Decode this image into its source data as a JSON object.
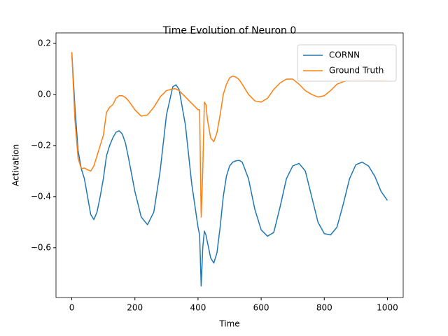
{
  "chart_data": {
    "type": "line",
    "title": "Time Evolution of Neuron 0",
    "x_label": "Time",
    "y_label": "Activation",
    "x": [
      0,
      10,
      20,
      30,
      40,
      50,
      60,
      70,
      80,
      90,
      100,
      110,
      120,
      130,
      140,
      150,
      160,
      170,
      180,
      200,
      220,
      240,
      260,
      280,
      300,
      320,
      330,
      340,
      360,
      380,
      400,
      405,
      410,
      415,
      420,
      425,
      430,
      440,
      450,
      460,
      470,
      480,
      490,
      500,
      510,
      520,
      530,
      540,
      560,
      580,
      600,
      620,
      640,
      660,
      680,
      700,
      720,
      740,
      760,
      780,
      800,
      820,
      840,
      860,
      880,
      900,
      920,
      940,
      960,
      980,
      1000
    ],
    "series": [
      {
        "name": "CORNN",
        "color": "#1f77b4",
        "values": [
          0.165,
          -0.05,
          -0.22,
          -0.29,
          -0.33,
          -0.4,
          -0.47,
          -0.49,
          -0.46,
          -0.4,
          -0.33,
          -0.24,
          -0.2,
          -0.17,
          -0.148,
          -0.142,
          -0.155,
          -0.19,
          -0.25,
          -0.38,
          -0.48,
          -0.51,
          -0.46,
          -0.3,
          -0.08,
          0.03,
          0.038,
          0.02,
          -0.12,
          -0.35,
          -0.52,
          -0.55,
          -0.75,
          -0.6,
          -0.535,
          -0.55,
          -0.58,
          -0.64,
          -0.66,
          -0.62,
          -0.52,
          -0.4,
          -0.32,
          -0.28,
          -0.265,
          -0.26,
          -0.258,
          -0.265,
          -0.33,
          -0.45,
          -0.53,
          -0.555,
          -0.54,
          -0.44,
          -0.33,
          -0.28,
          -0.27,
          -0.3,
          -0.4,
          -0.5,
          -0.545,
          -0.55,
          -0.52,
          -0.43,
          -0.33,
          -0.275,
          -0.265,
          -0.28,
          -0.32,
          -0.38,
          -0.415
        ]
      },
      {
        "name": "Ground Truth",
        "color": "#ff7f0e",
        "values": [
          0.165,
          -0.1,
          -0.25,
          -0.29,
          -0.288,
          -0.295,
          -0.3,
          -0.28,
          -0.24,
          -0.2,
          -0.16,
          -0.07,
          -0.05,
          -0.04,
          -0.015,
          -0.005,
          -0.005,
          -0.012,
          -0.025,
          -0.06,
          -0.085,
          -0.08,
          -0.05,
          -0.01,
          0.015,
          0.022,
          0.022,
          0.015,
          -0.01,
          -0.035,
          -0.06,
          -0.06,
          -0.48,
          -0.3,
          -0.03,
          -0.04,
          -0.1,
          -0.17,
          -0.185,
          -0.15,
          -0.08,
          0,
          0.04,
          0.065,
          0.072,
          0.068,
          0.058,
          0.04,
          0,
          -0.025,
          -0.03,
          -0.015,
          0.02,
          0.045,
          0.06,
          0.06,
          0.04,
          0.015,
          0,
          -0.01,
          -0.005,
          0.015,
          0.04,
          0.05,
          0.055,
          0.058,
          0.057,
          0.055,
          0.054,
          0.055,
          0.058
        ]
      }
    ],
    "xlim": [
      -50,
      1050
    ],
    "xticks": [
      0,
      200,
      400,
      600,
      800,
      1000
    ],
    "ylim": [
      -0.795,
      0.241
    ],
    "yticks": [
      {
        "value": -0.6,
        "label": "−0.6"
      },
      {
        "value": -0.4,
        "label": "−0.4"
      },
      {
        "value": -0.2,
        "label": "−0.2"
      },
      {
        "value": 0,
        "label": "0.0"
      },
      0.2
    ],
    "legend": "upper right"
  }
}
